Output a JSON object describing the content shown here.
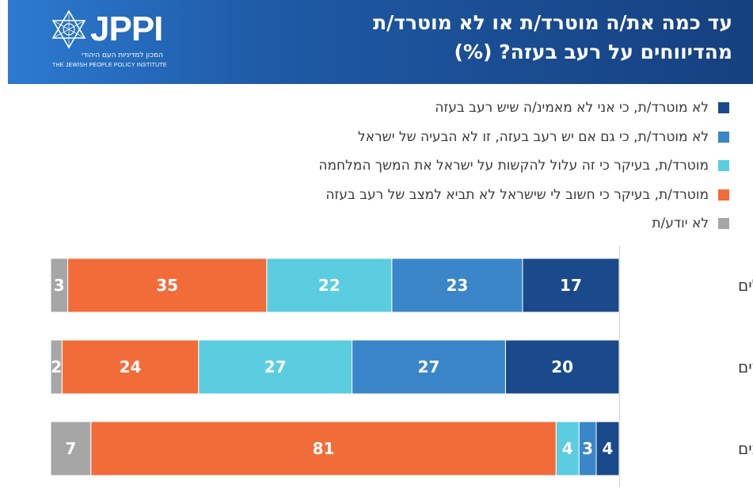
{
  "title": {
    "line1": "עד כמה את/ה מוטרד/ת או לא מוטרד/ת",
    "line2": "מהדיווחים על רעב בעזה? (%)"
  },
  "logo": {
    "wordmark": "JPPI",
    "subtitle_he": "המכון למדיניות העם היהודי",
    "subtitle_en": "THE JEWISH PEOPLE POLICY INSTITUTE"
  },
  "colors": {
    "header_start": "#2c7ad0",
    "header_end": "#16407f",
    "not_bothered_disbelieve": "#1b4a8c",
    "not_bothered_not_israel": "#3a86c8",
    "bothered_harder_war": "#5bcde0",
    "bothered_important": "#f26c3a",
    "dont_know": "#a6a6a6"
  },
  "chart_data": {
    "type": "bar",
    "orientation": "horizontal",
    "stacked": true,
    "unit": "%",
    "title": "עד כמה את/ה מוטרד/ת או לא מוטרד/ת מהדיווחים על רעב בעזה? (%)",
    "categories": [
      "כלל הישראלים",
      "יהודים",
      "ערבים"
    ],
    "legend_position": "top-right",
    "grid": false,
    "series": [
      {
        "name": "לא מוטרד/ת, כי אני לא מאמינ/ה שיש רעב בעזה",
        "color": "#1b4a8c",
        "values": [
          17,
          20,
          4
        ]
      },
      {
        "name": "לא מוטרד/ת, כי גם אם יש רעב בעזה, זו לא הבעיה של ישראל",
        "color": "#3a86c8",
        "values": [
          23,
          27,
          3
        ]
      },
      {
        "name": "מוטרד/ת, בעיקר כי זה עלול להקשות על ישראל את המשך המלחמה",
        "color": "#5bcde0",
        "values": [
          22,
          27,
          4
        ]
      },
      {
        "name": "מוטרד/ת, בעיקר כי חשוב לי שישראל לא תביא למצב של רעב בעזה",
        "color": "#f26c3a",
        "values": [
          35,
          24,
          81
        ]
      },
      {
        "name": "לא יודע/ת",
        "color": "#a6a6a6",
        "values": [
          3,
          2,
          7
        ]
      }
    ]
  }
}
